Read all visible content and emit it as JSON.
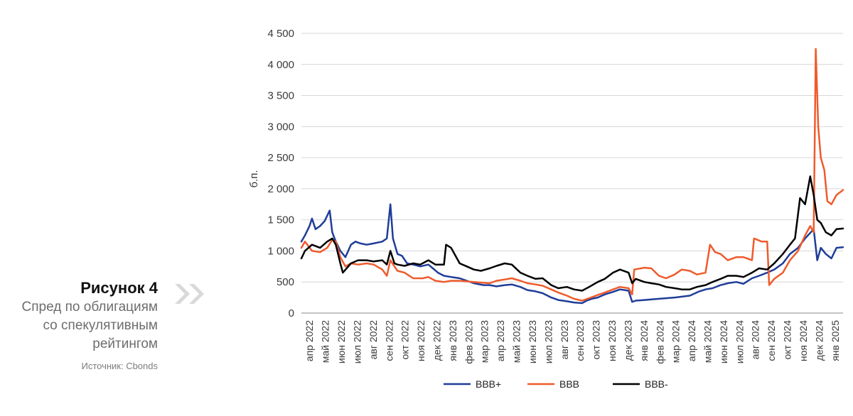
{
  "figure": {
    "title": "Рисунок 4",
    "subtitle_lines": [
      "Спред по облигациям",
      "со спекулятивным",
      "рейтингом"
    ],
    "source": "Источник: Cbonds"
  },
  "colors": {
    "bbb_plus": "#1f3d99",
    "bbb": "#ef5b2b",
    "bbb_minus": "#000000",
    "chevron": "#d9d9d9",
    "grid": "#d6d6d6"
  },
  "chart_data": {
    "type": "line",
    "title": "",
    "xlabel": "",
    "ylabel": "б.п.",
    "ylim": [
      0,
      4500
    ],
    "y_ticks": [
      0,
      500,
      1000,
      1500,
      2000,
      2500,
      3000,
      3500,
      4000,
      4500
    ],
    "y_tick_labels": [
      "0",
      "500",
      "1 000",
      "1 500",
      "2 000",
      "2 500",
      "3 000",
      "3 500",
      "4 000",
      "4 500"
    ],
    "x_tick_labels": [
      "апр 2022",
      "май 2022",
      "июн 2022",
      "июл 2022",
      "авг 2022",
      "сен 2022",
      "окт 2022",
      "ноя 2022",
      "дек 2022",
      "янв 2023",
      "фев 2023",
      "мар 2023",
      "апр 2023",
      "май 2023",
      "июн 2023",
      "июл 2023",
      "авг 2023",
      "сен 2023",
      "окт 2023",
      "ноя 2023",
      "дек 2023",
      "янв 2024",
      "фев 2024",
      "мар 2024",
      "апр 2024",
      "май 2024",
      "июн 2024",
      "июл 2024",
      "авг 2024",
      "сен 2024",
      "окт 2024",
      "ноя 2024",
      "дек 2024",
      "янв 2025"
    ],
    "x_range": [
      "2022-03-25",
      "2025-02-28"
    ],
    "grid": "horizontal",
    "legend_position": "bottom",
    "series": [
      {
        "name": "BBB+",
        "color": "#1f3d99",
        "points": [
          [
            "2022-03-25",
            1150
          ],
          [
            "2022-04-01",
            1250
          ],
          [
            "2022-04-10",
            1400
          ],
          [
            "2022-04-15",
            1520
          ],
          [
            "2022-04-22",
            1350
          ],
          [
            "2022-05-01",
            1400
          ],
          [
            "2022-05-10",
            1480
          ],
          [
            "2022-05-20",
            1650
          ],
          [
            "2022-05-25",
            1300
          ],
          [
            "2022-06-01",
            1150
          ],
          [
            "2022-06-10",
            1000
          ],
          [
            "2022-06-20",
            900
          ],
          [
            "2022-07-01",
            1100
          ],
          [
            "2022-07-10",
            1150
          ],
          [
            "2022-07-20",
            1120
          ],
          [
            "2022-08-01",
            1100
          ],
          [
            "2022-08-15",
            1120
          ],
          [
            "2022-09-01",
            1150
          ],
          [
            "2022-09-10",
            1200
          ],
          [
            "2022-09-17",
            1750
          ],
          [
            "2022-09-22",
            1200
          ],
          [
            "2022-10-01",
            950
          ],
          [
            "2022-10-10",
            920
          ],
          [
            "2022-10-20",
            800
          ],
          [
            "2022-11-01",
            780
          ],
          [
            "2022-11-15",
            750
          ],
          [
            "2022-12-01",
            780
          ],
          [
            "2022-12-10",
            720
          ],
          [
            "2022-12-20",
            650
          ],
          [
            "2023-01-01",
            600
          ],
          [
            "2023-01-15",
            580
          ],
          [
            "2023-02-01",
            560
          ],
          [
            "2023-02-15",
            520
          ],
          [
            "2023-03-01",
            480
          ],
          [
            "2023-03-20",
            450
          ],
          [
            "2023-04-01",
            450
          ],
          [
            "2023-04-15",
            430
          ],
          [
            "2023-05-01",
            450
          ],
          [
            "2023-05-15",
            460
          ],
          [
            "2023-06-01",
            420
          ],
          [
            "2023-06-15",
            370
          ],
          [
            "2023-07-01",
            350
          ],
          [
            "2023-07-15",
            320
          ],
          [
            "2023-08-01",
            250
          ],
          [
            "2023-08-15",
            210
          ],
          [
            "2023-09-01",
            190
          ],
          [
            "2023-09-15",
            170
          ],
          [
            "2023-10-01",
            160
          ],
          [
            "2023-10-10",
            200
          ],
          [
            "2023-10-20",
            230
          ],
          [
            "2023-11-01",
            250
          ],
          [
            "2023-11-15",
            300
          ],
          [
            "2023-12-01",
            340
          ],
          [
            "2023-12-15",
            380
          ],
          [
            "2024-01-01",
            360
          ],
          [
            "2024-01-08",
            180
          ],
          [
            "2024-01-15",
            200
          ],
          [
            "2024-02-01",
            210
          ],
          [
            "2024-03-01",
            230
          ],
          [
            "2024-04-01",
            250
          ],
          [
            "2024-05-01",
            280
          ],
          [
            "2024-05-20",
            350
          ],
          [
            "2024-06-01",
            380
          ],
          [
            "2024-06-15",
            400
          ],
          [
            "2024-07-01",
            450
          ],
          [
            "2024-07-15",
            480
          ],
          [
            "2024-08-01",
            500
          ],
          [
            "2024-08-15",
            470
          ],
          [
            "2024-09-01",
            560
          ],
          [
            "2024-09-15",
            600
          ],
          [
            "2024-10-01",
            650
          ],
          [
            "2024-10-15",
            700
          ],
          [
            "2024-11-01",
            800
          ],
          [
            "2024-11-15",
            950
          ],
          [
            "2024-12-01",
            1050
          ],
          [
            "2024-12-15",
            1200
          ],
          [
            "2025-01-01",
            1350
          ],
          [
            "2025-01-08",
            850
          ],
          [
            "2025-01-15",
            1050
          ],
          [
            "2025-01-25",
            950
          ],
          [
            "2025-02-05",
            880
          ],
          [
            "2025-02-15",
            1050
          ],
          [
            "2025-02-28",
            1060
          ]
        ]
      },
      {
        "name": "BBB",
        "color": "#ef5b2b",
        "points": [
          [
            "2022-03-25",
            1050
          ],
          [
            "2022-04-01",
            1150
          ],
          [
            "2022-04-15",
            1000
          ],
          [
            "2022-05-01",
            980
          ],
          [
            "2022-05-15",
            1050
          ],
          [
            "2022-05-25",
            1180
          ],
          [
            "2022-06-01",
            1150
          ],
          [
            "2022-06-10",
            900
          ],
          [
            "2022-06-20",
            750
          ],
          [
            "2022-07-01",
            800
          ],
          [
            "2022-07-15",
            780
          ],
          [
            "2022-08-01",
            800
          ],
          [
            "2022-08-15",
            780
          ],
          [
            "2022-09-01",
            700
          ],
          [
            "2022-09-10",
            600
          ],
          [
            "2022-09-17",
            850
          ],
          [
            "2022-09-25",
            750
          ],
          [
            "2022-10-01",
            680
          ],
          [
            "2022-10-15",
            650
          ],
          [
            "2022-11-01",
            560
          ],
          [
            "2022-11-20",
            560
          ],
          [
            "2022-12-01",
            580
          ],
          [
            "2022-12-15",
            520
          ],
          [
            "2023-01-01",
            500
          ],
          [
            "2023-01-15",
            520
          ],
          [
            "2023-02-01",
            520
          ],
          [
            "2023-03-01",
            500
          ],
          [
            "2023-04-01",
            480
          ],
          [
            "2023-04-15",
            520
          ],
          [
            "2023-05-01",
            540
          ],
          [
            "2023-05-15",
            560
          ],
          [
            "2023-06-01",
            520
          ],
          [
            "2023-06-15",
            480
          ],
          [
            "2023-07-01",
            460
          ],
          [
            "2023-07-15",
            440
          ],
          [
            "2023-08-01",
            380
          ],
          [
            "2023-08-15",
            330
          ],
          [
            "2023-09-01",
            280
          ],
          [
            "2023-09-15",
            230
          ],
          [
            "2023-10-01",
            200
          ],
          [
            "2023-10-15",
            240
          ],
          [
            "2023-11-01",
            290
          ],
          [
            "2023-11-15",
            330
          ],
          [
            "2023-12-01",
            380
          ],
          [
            "2023-12-15",
            420
          ],
          [
            "2024-01-01",
            400
          ],
          [
            "2024-01-08",
            300
          ],
          [
            "2024-01-12",
            700
          ],
          [
            "2024-02-01",
            730
          ],
          [
            "2024-02-15",
            720
          ],
          [
            "2024-03-01",
            600
          ],
          [
            "2024-03-15",
            560
          ],
          [
            "2024-04-01",
            620
          ],
          [
            "2024-04-15",
            700
          ],
          [
            "2024-05-01",
            680
          ],
          [
            "2024-05-15",
            620
          ],
          [
            "2024-06-01",
            650
          ],
          [
            "2024-06-10",
            1100
          ],
          [
            "2024-06-20",
            980
          ],
          [
            "2024-07-01",
            950
          ],
          [
            "2024-07-15",
            850
          ],
          [
            "2024-08-01",
            900
          ],
          [
            "2024-08-15",
            900
          ],
          [
            "2024-09-01",
            850
          ],
          [
            "2024-09-05",
            1200
          ],
          [
            "2024-09-20",
            1150
          ],
          [
            "2024-10-01",
            1150
          ],
          [
            "2024-10-05",
            450
          ],
          [
            "2024-10-15",
            550
          ],
          [
            "2024-11-01",
            650
          ],
          [
            "2024-11-15",
            850
          ],
          [
            "2024-12-01",
            1000
          ],
          [
            "2024-12-15",
            1250
          ],
          [
            "2024-12-25",
            1400
          ],
          [
            "2025-01-01",
            1300
          ],
          [
            "2025-01-05",
            4250
          ],
          [
            "2025-01-10",
            3000
          ],
          [
            "2025-01-15",
            2500
          ],
          [
            "2025-01-22",
            2300
          ],
          [
            "2025-01-28",
            1800
          ],
          [
            "2025-02-05",
            1750
          ],
          [
            "2025-02-15",
            1900
          ],
          [
            "2025-02-28",
            1980
          ]
        ]
      },
      {
        "name": "BBB-",
        "color": "#000000",
        "points": [
          [
            "2022-03-25",
            880
          ],
          [
            "2022-04-01",
            1000
          ],
          [
            "2022-04-15",
            1100
          ],
          [
            "2022-05-01",
            1050
          ],
          [
            "2022-05-15",
            1150
          ],
          [
            "2022-05-25",
            1200
          ],
          [
            "2022-06-01",
            1100
          ],
          [
            "2022-06-10",
            800
          ],
          [
            "2022-06-15",
            650
          ],
          [
            "2022-07-01",
            800
          ],
          [
            "2022-07-15",
            850
          ],
          [
            "2022-08-01",
            850
          ],
          [
            "2022-08-15",
            830
          ],
          [
            "2022-09-01",
            850
          ],
          [
            "2022-09-10",
            780
          ],
          [
            "2022-09-17",
            1000
          ],
          [
            "2022-09-25",
            800
          ],
          [
            "2022-10-01",
            780
          ],
          [
            "2022-10-15",
            760
          ],
          [
            "2022-11-01",
            800
          ],
          [
            "2022-11-15",
            780
          ],
          [
            "2022-12-01",
            850
          ],
          [
            "2022-12-15",
            780
          ],
          [
            "2023-01-01",
            780
          ],
          [
            "2023-01-05",
            1100
          ],
          [
            "2023-01-15",
            1050
          ],
          [
            "2023-02-01",
            800
          ],
          [
            "2023-02-15",
            750
          ],
          [
            "2023-03-01",
            700
          ],
          [
            "2023-03-15",
            680
          ],
          [
            "2023-04-01",
            720
          ],
          [
            "2023-04-15",
            760
          ],
          [
            "2023-05-01",
            800
          ],
          [
            "2023-05-15",
            780
          ],
          [
            "2023-06-01",
            650
          ],
          [
            "2023-06-15",
            600
          ],
          [
            "2023-07-01",
            550
          ],
          [
            "2023-07-15",
            560
          ],
          [
            "2023-08-01",
            450
          ],
          [
            "2023-08-15",
            400
          ],
          [
            "2023-09-01",
            420
          ],
          [
            "2023-09-15",
            380
          ],
          [
            "2023-10-01",
            360
          ],
          [
            "2023-10-15",
            420
          ],
          [
            "2023-11-01",
            500
          ],
          [
            "2023-11-15",
            550
          ],
          [
            "2023-12-01",
            650
          ],
          [
            "2023-12-15",
            700
          ],
          [
            "2024-01-01",
            650
          ],
          [
            "2024-01-08",
            480
          ],
          [
            "2024-01-15",
            550
          ],
          [
            "2024-02-01",
            500
          ],
          [
            "2024-02-15",
            480
          ],
          [
            "2024-03-01",
            460
          ],
          [
            "2024-03-15",
            420
          ],
          [
            "2024-04-01",
            400
          ],
          [
            "2024-04-15",
            380
          ],
          [
            "2024-05-01",
            380
          ],
          [
            "2024-05-15",
            420
          ],
          [
            "2024-06-01",
            450
          ],
          [
            "2024-06-15",
            500
          ],
          [
            "2024-07-01",
            550
          ],
          [
            "2024-07-15",
            600
          ],
          [
            "2024-08-01",
            600
          ],
          [
            "2024-08-15",
            580
          ],
          [
            "2024-09-01",
            650
          ],
          [
            "2024-09-15",
            720
          ],
          [
            "2024-10-01",
            700
          ],
          [
            "2024-10-15",
            800
          ],
          [
            "2024-11-01",
            950
          ],
          [
            "2024-11-15",
            1100
          ],
          [
            "2024-11-25",
            1200
          ],
          [
            "2024-12-05",
            1850
          ],
          [
            "2024-12-15",
            1750
          ],
          [
            "2024-12-25",
            2200
          ],
          [
            "2025-01-01",
            1900
          ],
          [
            "2025-01-08",
            1500
          ],
          [
            "2025-01-15",
            1450
          ],
          [
            "2025-01-25",
            1300
          ],
          [
            "2025-02-05",
            1250
          ],
          [
            "2025-02-15",
            1350
          ],
          [
            "2025-02-28",
            1360
          ]
        ]
      }
    ]
  }
}
